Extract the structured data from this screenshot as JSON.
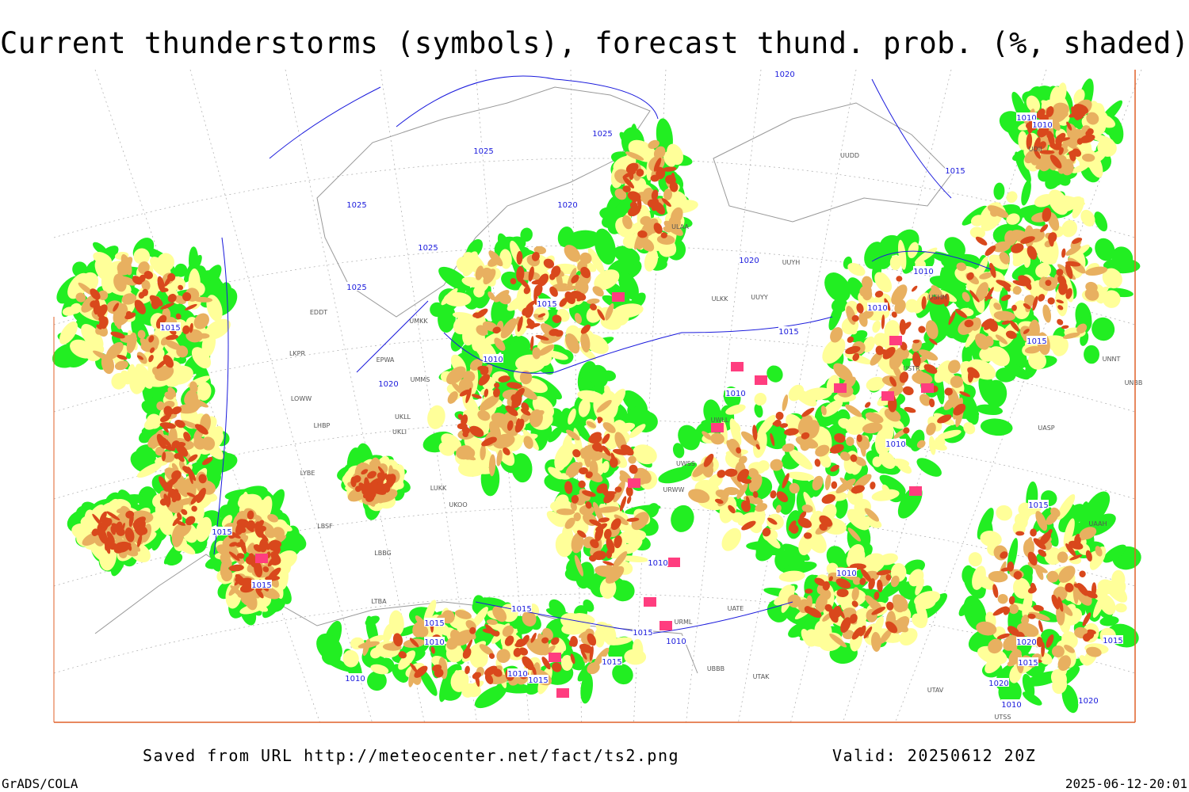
{
  "title": "Current thunderstorms (symbols), forecast thund. prob. (%, shaded)",
  "footer": {
    "source": "Saved from URL http://meteocenter.net/fact/ts2.png",
    "valid": "Valid: 20250612 20Z",
    "software": "GrADS/COLA",
    "timestamp": "2025-06-12-20:01"
  },
  "isobar_labels": [
    1020,
    1025,
    1025,
    1025,
    1025,
    1025,
    1020,
    1020,
    1015,
    1015,
    1015,
    1010,
    1010,
    1010,
    1010,
    1010,
    1015,
    1015,
    1015,
    1010,
    1010,
    1020,
    1015,
    1015,
    1010,
    1010,
    1015,
    1010,
    1015,
    1015,
    1010,
    1015,
    1010,
    1010,
    1015,
    1020,
    1015,
    1015,
    1020,
    1010,
    1020
  ],
  "station_labels": [
    "ULAA",
    "UUYH",
    "UUYY",
    "ULKK",
    "EDDT",
    "UMKK",
    "LKPR",
    "EPWA",
    "UMMS",
    "LOWW",
    "LHBP",
    "UKLL",
    "UKLI",
    "LYBE",
    "LUKK",
    "UKOO",
    "LBSF",
    "LBBG",
    "LTBA",
    "USHH",
    "USTR",
    "UNNT",
    "UNBB",
    "UASP",
    "UUDD",
    "UOII",
    "UAAH",
    "UATE",
    "UBBB",
    "UTAK",
    "UTAV",
    "UTSS",
    "UWLL",
    "UWSS",
    "URWW",
    "URML"
  ]
}
